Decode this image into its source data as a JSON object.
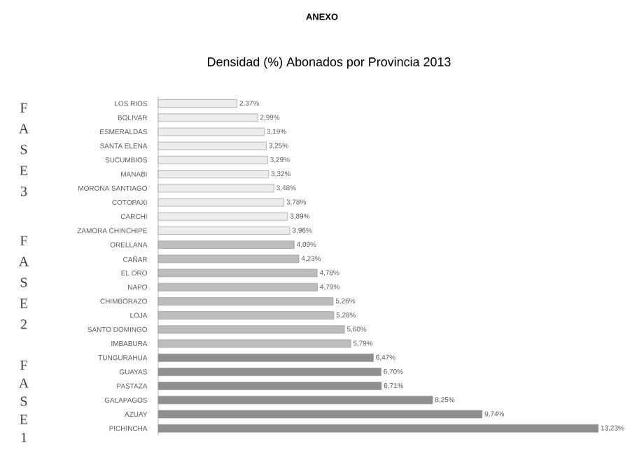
{
  "chart_data": {
    "type": "bar",
    "orientation": "horizontal",
    "title": "Densidad (%) Abonados por Provincia 2013",
    "categories": [
      "LOS RIOS",
      "BOLIVAR",
      "ESMERALDAS",
      "SANTA ELENA",
      "SUCUMBIOS",
      "MANABI",
      "MORONA SANTIAGO",
      "COTOPAXI",
      "CARCHI",
      "ZAMORA CHINCHIPE",
      "ORELLANA",
      "CAÑAR",
      "EL ORO",
      "NAPO",
      "CHIMBORAZO",
      "LOJA",
      "SANTO DOMINGO",
      "IMBABURA",
      "TUNGURAHUA",
      "GUAYAS",
      "PASTAZA",
      "GALAPAGOS",
      "AZUAY",
      "PICHINCHA"
    ],
    "values": [
      2.37,
      2.99,
      3.19,
      3.25,
      3.29,
      3.32,
      3.48,
      3.78,
      3.89,
      3.96,
      4.09,
      4.23,
      4.78,
      4.79,
      5.26,
      5.28,
      5.6,
      5.79,
      6.47,
      6.7,
      6.71,
      8.25,
      9.74,
      13.23
    ],
    "value_labels": [
      "2,37%",
      "2,99%",
      "3,19%",
      "3,25%",
      "3,29%",
      "3,32%",
      "3,48%",
      "3,78%",
      "3,89%",
      "3,96%",
      "4,09%",
      "4,23%",
      "4,78%",
      "4,79%",
      "5,26%",
      "5,28%",
      "5,60%",
      "5,79%",
      "6,47%",
      "6,70%",
      "6,71%",
      "8,25%",
      "9,74%",
      "13,23%"
    ],
    "colors": [
      "#ececec",
      "#ececec",
      "#ececec",
      "#ececec",
      "#ececec",
      "#ececec",
      "#ececec",
      "#ececec",
      "#ececec",
      "#ececec",
      "#bdbdbd",
      "#bdbdbd",
      "#bdbdbd",
      "#bdbdbd",
      "#bdbdbd",
      "#bdbdbd",
      "#bdbdbd",
      "#bdbdbd",
      "#8f8f8f",
      "#8f8f8f",
      "#8f8f8f",
      "#8f8f8f",
      "#8f8f8f",
      "#8f8f8f"
    ],
    "annotations": [
      "ANEXO",
      "F A S E 3",
      "F A S E 2",
      "F A S E 1"
    ]
  }
}
